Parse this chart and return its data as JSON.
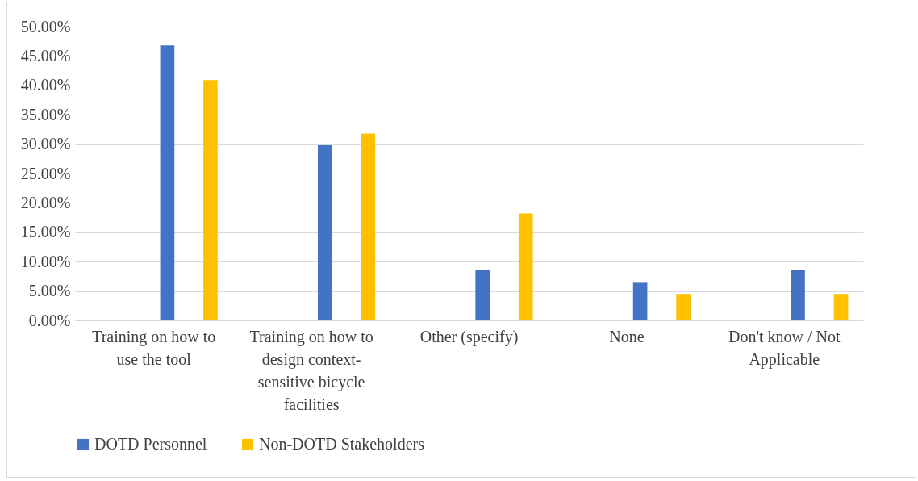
{
  "chart_data": {
    "type": "bar",
    "categories": [
      "Training on how to use the tool",
      "Training on how to design context-sensitive bicycle facilities",
      "Other (specify)",
      "None",
      "Don't know / Not Applicable"
    ],
    "series": [
      {
        "name": "DOTD Personnel",
        "color": "#4472c4",
        "values": [
          46.8,
          29.8,
          8.5,
          6.4,
          8.5
        ]
      },
      {
        "name": "Non-DOTD Stakeholders",
        "color": "#ffc000",
        "values": [
          40.9,
          31.8,
          18.2,
          4.5,
          4.5
        ]
      }
    ],
    "ylim": [
      0,
      50
    ],
    "yticks": [
      {
        "value": 0,
        "label": "0.00%"
      },
      {
        "value": 5,
        "label": "5.00%"
      },
      {
        "value": 10,
        "label": "10.00%"
      },
      {
        "value": 15,
        "label": "15.00%"
      },
      {
        "value": 20,
        "label": "20.00%"
      },
      {
        "value": 25,
        "label": "25.00%"
      },
      {
        "value": 30,
        "label": "30.00%"
      },
      {
        "value": 35,
        "label": "35.00%"
      },
      {
        "value": 40,
        "label": "40.00%"
      },
      {
        "value": 45,
        "label": "45.00%"
      },
      {
        "value": 50,
        "label": "50.00%"
      }
    ],
    "grid": "y",
    "legend": "bottom"
  }
}
